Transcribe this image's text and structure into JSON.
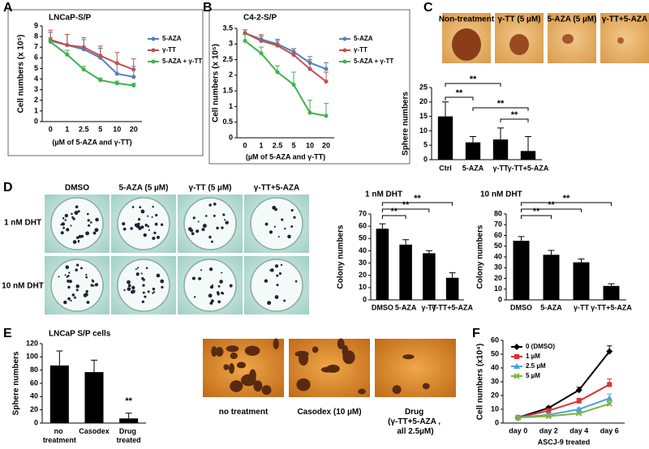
{
  "panel_labels": [
    "A",
    "B",
    "C",
    "D",
    "E",
    "F"
  ],
  "images": {
    "C": [
      "Non-treatment",
      "γ-TT (5 µM)",
      "5-AZA (5 µM)",
      "γ-TT+5-AZA"
    ],
    "D": {
      "columns": [
        "DMSO",
        "5-AZA (5 µM)",
        "γ-TT (5 µM)",
        "γ-TT+5-AZA"
      ],
      "rows": [
        "1 nM DHT",
        "10 nM DHT"
      ]
    },
    "E": [
      "no treatment",
      "Casodex (10 µM)",
      "Drug (γ-TT+5-AZA , all 2.5µM)"
    ]
  },
  "chart_data": [
    {
      "type": "line",
      "title": "LNCaP-S/P",
      "x_label": "(µM of 5-AZA and γ-TT)",
      "y_label": "Cell numbers (x 10⁵)",
      "categories": [
        "0",
        "1",
        "2.5",
        "5",
        "10",
        "20"
      ],
      "series": [
        {
          "name": "5-AZA",
          "color": "#4f81bd",
          "marker": "circle",
          "values": [
            7.6,
            7.2,
            6.8,
            6.0,
            4.5,
            4.2
          ],
          "errors": [
            0.8,
            1.0,
            0.9,
            0.9,
            1.0,
            1.0
          ]
        },
        {
          "name": "γ-TT",
          "color": "#c0504d",
          "marker": "circle",
          "values": [
            7.7,
            7.2,
            7.0,
            6.2,
            5.5,
            4.9
          ],
          "errors": [
            0.9,
            1.0,
            0.9,
            0.9,
            1.0,
            1.0
          ]
        },
        {
          "name": "5-AZA + γ-TT",
          "color": "#3cb44b",
          "marker": "circle",
          "values": [
            7.5,
            6.3,
            4.9,
            3.9,
            3.6,
            3.4
          ],
          "errors": [
            0.4,
            0.4,
            0.3,
            0.2,
            0.2,
            0.2
          ]
        }
      ],
      "ylim": [
        0,
        9
      ],
      "yticks": [
        0,
        1,
        2,
        3,
        4,
        5,
        6,
        7,
        8,
        9
      ],
      "legend": "right"
    },
    {
      "type": "line",
      "title": "C4-2-S/P",
      "x_label": "(µM of 5-AZA and γ-TT)",
      "y_label": "Cell numbers (x 10⁵)",
      "categories": [
        "0",
        "1",
        "2.5",
        "5",
        "10",
        "20"
      ],
      "series": [
        {
          "name": "5-AZA",
          "color": "#4f81bd",
          "marker": "circle",
          "values": [
            3.35,
            3.15,
            3.0,
            2.75,
            2.4,
            2.2
          ],
          "errors": [
            0.1,
            0.1,
            0.1,
            0.1,
            0.2,
            0.2
          ]
        },
        {
          "name": "γ-TT",
          "color": "#c0504d",
          "marker": "circle",
          "values": [
            3.35,
            3.1,
            2.95,
            2.65,
            2.2,
            1.8
          ],
          "errors": [
            0.1,
            0.2,
            0.2,
            0.2,
            0.3,
            0.3
          ]
        },
        {
          "name": "5-AZA + γ-TT",
          "color": "#3cb44b",
          "marker": "circle",
          "values": [
            3.1,
            2.7,
            2.1,
            1.7,
            0.8,
            0.7
          ],
          "errors": [
            0.2,
            0.2,
            0.2,
            0.4,
            0.4,
            0.4
          ]
        }
      ],
      "ylim": [
        0,
        3.5
      ],
      "yticks": [
        0,
        0.5,
        1,
        1.5,
        2,
        2.5,
        3,
        3.5
      ],
      "legend": "right"
    },
    {
      "type": "bar",
      "y_label": "Sphere numbers",
      "categories": [
        "Ctrl",
        "5-AZA",
        "γ-TT",
        "γ-TT+5-AZA"
      ],
      "values": [
        15,
        6,
        7,
        3
      ],
      "errors": [
        5,
        2,
        4,
        5
      ],
      "color": "#000000",
      "ylim": [
        0,
        25
      ],
      "yticks": [
        0,
        5,
        10,
        15,
        20,
        25
      ],
      "annotations": [
        "**",
        "**",
        "**",
        "**"
      ]
    },
    {
      "type": "bar",
      "title": "1 nM DHT",
      "y_label": "Colony numbers",
      "categories": [
        "DMSO",
        "5-AZA",
        "γ-TT",
        "γ-TT+5-AZA"
      ],
      "values": [
        58,
        45,
        38,
        18
      ],
      "errors": [
        4,
        4,
        2,
        4
      ],
      "color": "#000000",
      "ylim": [
        0,
        70
      ],
      "yticks": [
        0,
        10,
        20,
        30,
        40,
        50,
        60,
        70
      ],
      "annotations": [
        "**",
        "**",
        "**"
      ]
    },
    {
      "type": "bar",
      "title": "10 nM DHT",
      "y_label": "Colony numbers",
      "categories": [
        "DMSO",
        "5-AZA",
        "γ-TT",
        "γ-TT+5-AZA"
      ],
      "values": [
        55,
        42,
        35,
        13
      ],
      "errors": [
        4,
        4,
        3,
        2
      ],
      "color": "#000000",
      "ylim": [
        0,
        80
      ],
      "yticks": [
        0,
        10,
        20,
        30,
        40,
        50,
        60,
        70,
        80
      ],
      "annotations": [
        "**",
        "**",
        "**"
      ]
    },
    {
      "type": "bar",
      "title": "LNCaP S/P cells",
      "y_label": "Sphere numbers",
      "categories": [
        "no treatment",
        "Casodex",
        "Drug treated"
      ],
      "values": [
        87,
        77,
        7
      ],
      "errors": [
        22,
        18,
        8
      ],
      "color": "#000000",
      "ylim": [
        0,
        120
      ],
      "yticks": [
        0,
        20,
        40,
        60,
        80,
        100,
        120
      ],
      "annotations": [
        "**"
      ]
    },
    {
      "type": "line",
      "x_label": "ASCJ-9 treated",
      "y_label": "Cell numbers (x10⁴)",
      "categories": [
        "day 0",
        "day 2",
        "day 4",
        "day 6"
      ],
      "series": [
        {
          "name": "0 (DMSO)",
          "color": "#000000",
          "marker": "diamond",
          "values": [
            4,
            11,
            24,
            52
          ],
          "errors": [
            1,
            1,
            2,
            4
          ]
        },
        {
          "name": "1 µM",
          "color": "#e03030",
          "marker": "square",
          "values": [
            4,
            9,
            16,
            28
          ],
          "errors": [
            1,
            1,
            2,
            4
          ]
        },
        {
          "name": "2.5 µM",
          "color": "#4aa3df",
          "marker": "triangle",
          "values": [
            4,
            6,
            10,
            18
          ],
          "errors": [
            0.5,
            1,
            1,
            3
          ]
        },
        {
          "name": "5 µM",
          "color": "#7cb342",
          "marker": "cross",
          "values": [
            4,
            5,
            7,
            14
          ],
          "errors": [
            0.5,
            0.5,
            1,
            2
          ]
        }
      ],
      "ylim": [
        0,
        60
      ],
      "yticks": [
        0,
        10,
        20,
        30,
        40,
        50,
        60
      ],
      "legend": "upper left"
    }
  ]
}
